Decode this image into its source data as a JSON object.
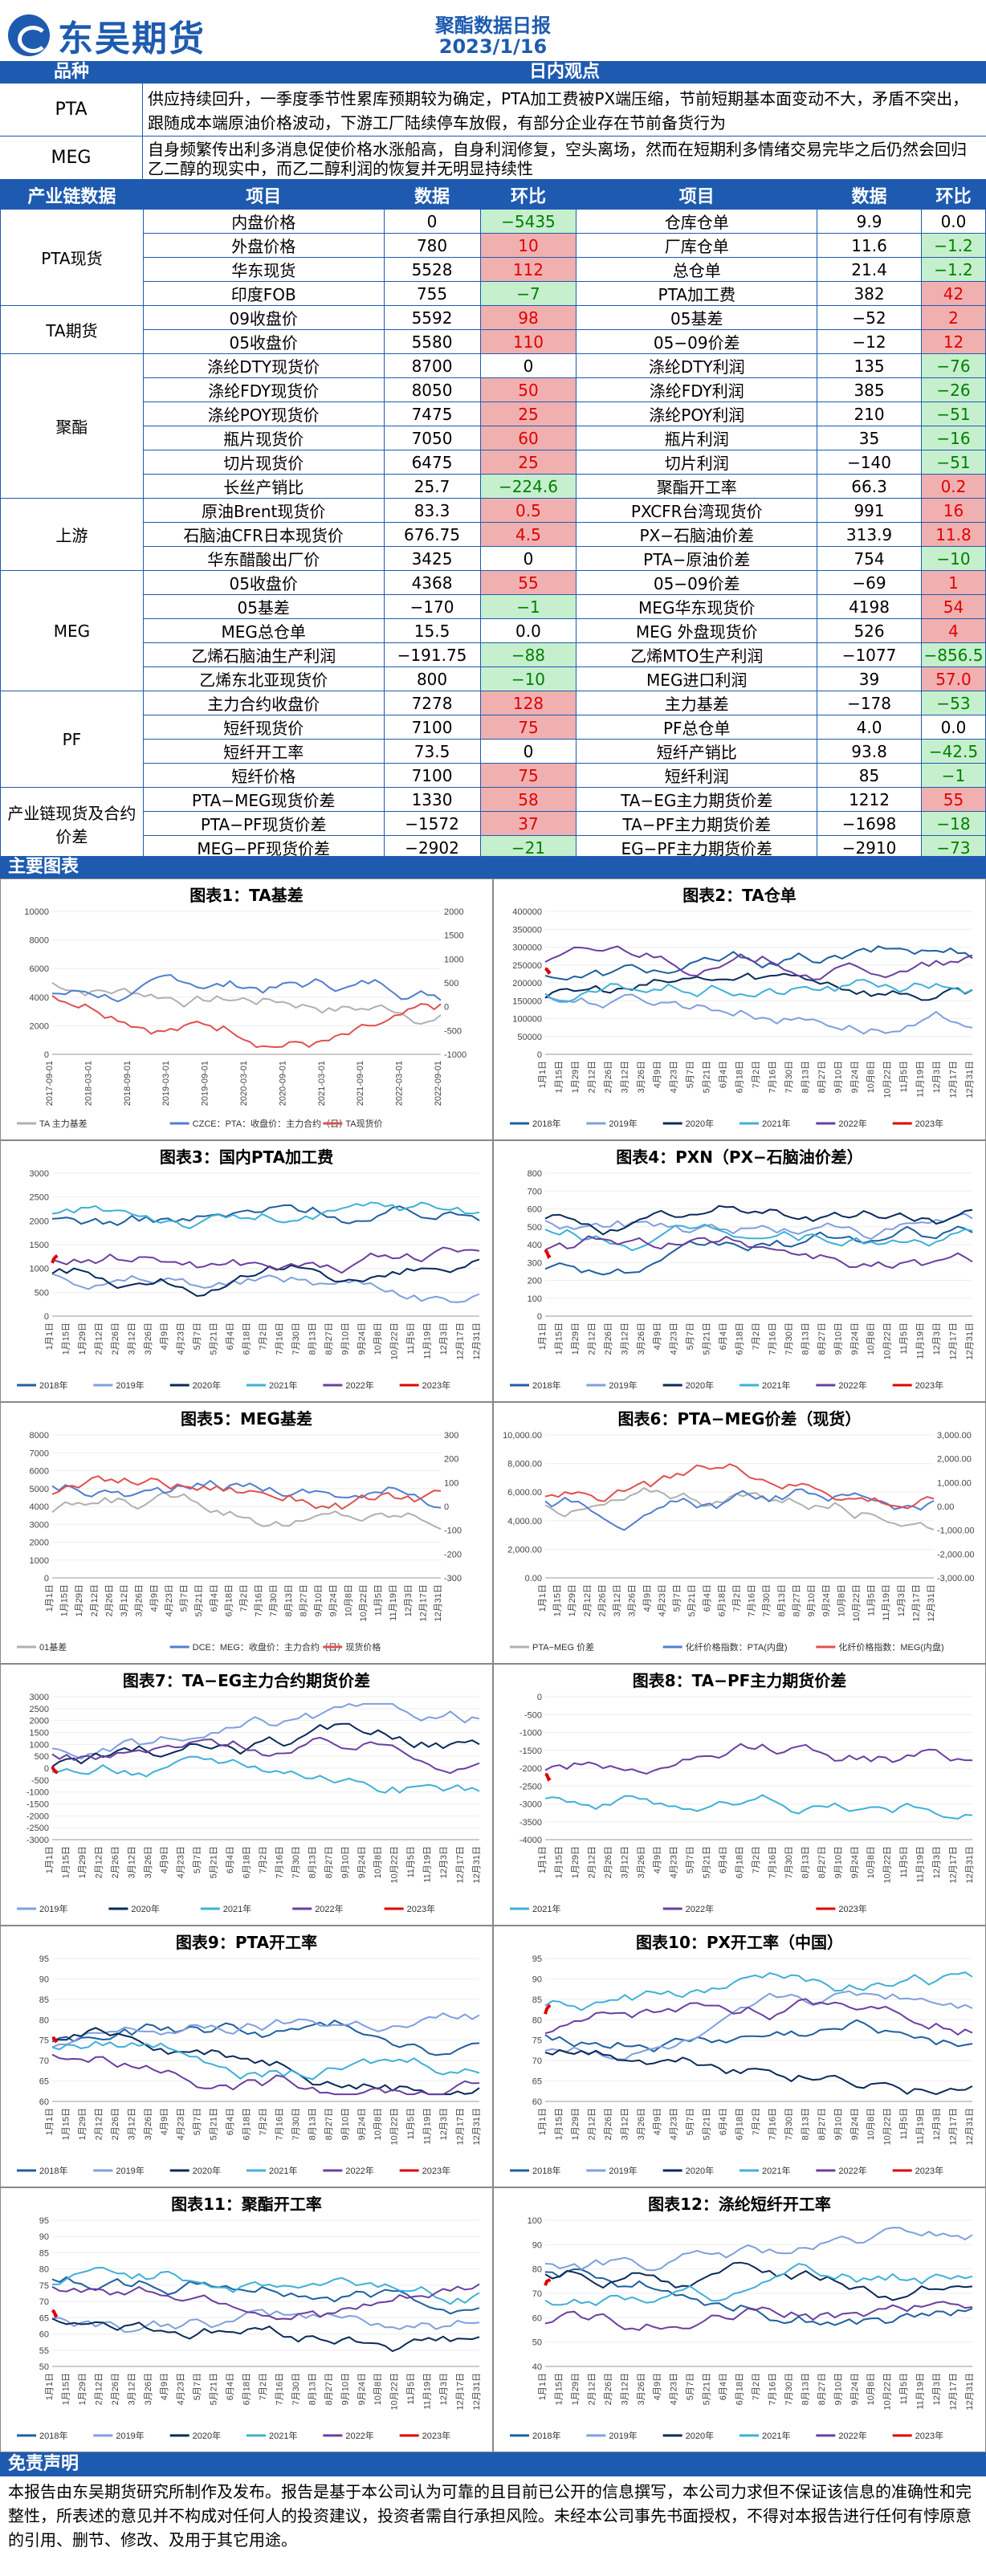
{
  "header": {
    "brand": "东吴期货",
    "title": "聚酯数据日报",
    "date": "2023/1/16"
  },
  "views": {
    "head_k": "品种",
    "head_v": "日内观点",
    "rows": [
      {
        "k": "PTA",
        "v": "供应持续回升，一季度季节性累库预期较为确定，PTA加工费被PX端压缩，节前短期基本面变动不大，矛盾不突出，跟随成本端原油价格波动，下游工厂陆续停车放假，有部分企业存在节前备货行为"
      },
      {
        "k": "MEG",
        "v": "自身频繁传出利多消息促使价格水涨船高，自身利润修复，空头离场，然而在短期利多情绪交易完毕之后仍然会回归乙二醇的现实中，而乙二醇利润的恢复并无明显持续性"
      }
    ]
  },
  "table": {
    "headers": [
      "产业链数据",
      "项目",
      "数据",
      "环比",
      "项目",
      "数据",
      "环比"
    ],
    "groups": [
      {
        "name": "PTA现货",
        "rows": [
          [
            "内盘价格",
            "0",
            "−5435",
            "仓库仓单",
            "9.9",
            "0.0"
          ],
          [
            "外盘价格",
            "780",
            "10",
            "厂库仓单",
            "11.6",
            "−1.2"
          ],
          [
            "华东现货",
            "5528",
            "112",
            "总仓单",
            "21.4",
            "−1.2"
          ],
          [
            "印度FOB",
            "755",
            "−7",
            "PTA加工费",
            "382",
            "42"
          ]
        ]
      },
      {
        "name": "TA期货",
        "rows": [
          [
            "09收盘价",
            "5592",
            "98",
            "05基差",
            "−52",
            "2"
          ],
          [
            "05收盘价",
            "5580",
            "110",
            "05−09价差",
            "−12",
            "12"
          ]
        ]
      },
      {
        "name": "聚酯",
        "rows": [
          [
            "涤纶DTY现货价",
            "8700",
            "0",
            "涤纶DTY利润",
            "135",
            "−76"
          ],
          [
            "涤纶FDY现货价",
            "8050",
            "50",
            "涤纶FDY利润",
            "385",
            "−26"
          ],
          [
            "涤纶POY现货价",
            "7475",
            "25",
            "涤纶POY利润",
            "210",
            "−51"
          ],
          [
            "瓶片现货价",
            "7050",
            "60",
            "瓶片利润",
            "35",
            "−16"
          ],
          [
            "切片现货价",
            "6475",
            "25",
            "切片利润",
            "−140",
            "−51"
          ],
          [
            "长丝产销比",
            "25.7",
            "−224.6",
            "聚酯开工率",
            "66.3",
            "0.2"
          ]
        ]
      },
      {
        "name": "上游",
        "rows": [
          [
            "原油Brent现货价",
            "83.3",
            "0.5",
            "PXCFR台湾现货价",
            "991",
            "16"
          ],
          [
            "石脑油CFR日本现货价",
            "676.75",
            "4.5",
            "PX−石脑油价差",
            "313.9",
            "11.8"
          ],
          [
            "华东醋酸出厂价",
            "3425",
            "0",
            "PTA−原油价差",
            "754",
            "−10"
          ]
        ]
      },
      {
        "name": "MEG",
        "rows": [
          [
            "05收盘价",
            "4368",
            "55",
            "05−09价差",
            "−69",
            "1"
          ],
          [
            "05基差",
            "−170",
            "−1",
            "MEG华东现货价",
            "4198",
            "54"
          ],
          [
            "MEG总仓单",
            "15.5",
            "0.0",
            "MEG 外盘现货价",
            "526",
            "4"
          ],
          [
            "乙烯石脑油生产利润",
            "−191.75",
            "−88",
            "乙烯MTO生产利润",
            "−1077",
            "−856.5"
          ],
          [
            "乙烯东北亚现货价",
            "800",
            "−10",
            "MEG进口利润",
            "39",
            "57.0"
          ]
        ]
      },
      {
        "name": "PF",
        "rows": [
          [
            "主力合约收盘价",
            "7278",
            "128",
            "主力基差",
            "−178",
            "−53"
          ],
          [
            "短纤现货价",
            "7100",
            "75",
            "PF总仓单",
            "4.0",
            "0.0"
          ],
          [
            "短纤开工率",
            "73.5",
            "0",
            "短纤产销比",
            "93.8",
            "−42.5"
          ],
          [
            "短纤价格",
            "7100",
            "75",
            "短纤利润",
            "85",
            "−1"
          ]
        ]
      },
      {
        "name": "产业链现货及合约价差",
        "rows": [
          [
            "PTA−MEG现货价差",
            "1330",
            "58",
            "TA−EG主力期货价差",
            "1212",
            "55"
          ],
          [
            "PTA−PF现货价差",
            "−1572",
            "37",
            "TA−PF主力期货价差",
            "−1698",
            "−18"
          ],
          [
            "MEG−PF现货价差",
            "−2902",
            "−21",
            "EG−PF主力期货价差",
            "−2910",
            "−73"
          ]
        ]
      }
    ]
  },
  "charts_header": "主要图表",
  "charts": [
    {
      "title": "图表1：TA基差",
      "legend": [
        "TA 主力基差",
        "CZCE：PTA：收盘价：主力合约（日）",
        "TA现货价"
      ],
      "xticks": [
        "2017-09-01",
        "2018-03-01",
        "2018-09-01",
        "2019-03-01",
        "2019-09-01",
        "2020-03-01",
        "2020-09-01",
        "2021-03-01",
        "2021-09-01",
        "2022-03-01",
        "2022-09-01"
      ],
      "yl": [
        "10000",
        "8000",
        "6000",
        "4000",
        "2000",
        "0"
      ],
      "yr": [
        "2000",
        "1500",
        "1000",
        "500",
        "0",
        "-500",
        "-1000"
      ]
    },
    {
      "title": "图表2：TA仓单",
      "legend": [
        "2018年",
        "2019年",
        "2020年",
        "2021年",
        "2022年",
        "2023年"
      ],
      "yl": [
        "400000",
        "350000",
        "300000",
        "250000",
        "200000",
        "150000",
        "100000",
        "50000",
        "0"
      ]
    },
    {
      "title": "图表3：国内PTA加工费",
      "legend": [
        "2018年",
        "2019年",
        "2020年",
        "2021年",
        "2022年",
        "2023年"
      ],
      "yl": [
        "3000",
        "2500",
        "2000",
        "1500",
        "1000",
        "500",
        "0"
      ]
    },
    {
      "title": "图表4：PXN（PX−石脑油价差）",
      "legend": [
        "2018年",
        "2019年",
        "2020年",
        "2021年",
        "2022年",
        "2023年"
      ],
      "yl": [
        "800",
        "700",
        "600",
        "500",
        "400",
        "300",
        "200",
        "100",
        "0"
      ]
    },
    {
      "title": "图表5：MEG基差",
      "legend": [
        "01基差",
        "DCE：MEG：收盘价：主力合约（日）",
        "现货价格"
      ],
      "yl": [
        "8000",
        "7000",
        "6000",
        "5000",
        "4000",
        "3000",
        "2000",
        "1000",
        "0"
      ],
      "yr": [
        "300",
        "200",
        "100",
        "0",
        "-100",
        "-200",
        "-300"
      ]
    },
    {
      "title": "图表6：PTA−MEG价差（现货）",
      "legend": [
        "PTA−MEG 价差",
        "化纤价格指数：PTA(内盘)",
        "化纤价格指数：MEG(内盘)"
      ],
      "yl": [
        "10,000.00",
        "8,000.00",
        "6,000.00",
        "4,000.00",
        "2,000.00",
        "0.00"
      ],
      "yr": [
        "3,000.00",
        "2,000.00",
        "1,000.00",
        "0.00",
        "-1,000.00",
        "-2,000.00",
        "-3,000.00"
      ]
    },
    {
      "title": "图表7：TA−EG主力合约期货价差",
      "legend": [
        "2019年",
        "2020年",
        "2021年",
        "2022年",
        "2023年"
      ],
      "yl": [
        "3000",
        "2500",
        "2000",
        "1500",
        "1000",
        "500",
        "0",
        "-500",
        "-1000",
        "-1500",
        "-2000",
        "-2500",
        "-3000"
      ]
    },
    {
      "title": "图表8：TA−PF主力期货价差",
      "legend": [
        "2021年",
        "2022年",
        "2023年"
      ],
      "yl": [
        "0",
        "-500",
        "-1000",
        "-1500",
        "-2000",
        "-2500",
        "-3000",
        "-3500",
        "-4000"
      ]
    },
    {
      "title": "图表9：PTA开工率",
      "legend": [
        "2018年",
        "2019年",
        "2020年",
        "2021年",
        "2022年",
        "2023年"
      ],
      "yl": [
        "95",
        "90",
        "85",
        "80",
        "75",
        "70",
        "65",
        "60"
      ]
    },
    {
      "title": "图表10：PX开工率（中国）",
      "legend": [
        "2018年",
        "2019年",
        "2020年",
        "2021年",
        "2022年",
        "2023年"
      ],
      "yl": [
        "95",
        "90",
        "85",
        "80",
        "75",
        "70",
        "65",
        "60"
      ]
    },
    {
      "title": "图表11：聚酯开工率",
      "legend": [
        "2018年",
        "2019年",
        "2020年",
        "2021年",
        "2022年",
        "2023年"
      ],
      "yl": [
        "95",
        "90",
        "85",
        "80",
        "75",
        "70",
        "65",
        "60",
        "55",
        "50"
      ]
    },
    {
      "title": "图表12：涤纶短纤开工率",
      "legend": [
        "2018年",
        "2019年",
        "2020年",
        "2021年",
        "2022年",
        "2023年"
      ],
      "yl": [
        "100",
        "90",
        "80",
        "70",
        "60",
        "50",
        "40"
      ]
    }
  ],
  "day_ticks": [
    "1月1日",
    "1月15日",
    "1月29日",
    "2月12日",
    "2月26日",
    "3月12日",
    "3月26日",
    "4月9日",
    "4月23日",
    "5月7日",
    "5月21日",
    "6月4日",
    "6月18日",
    "7月2日",
    "7月16日",
    "7月30日",
    "8月13日",
    "8月27日",
    "9月10日",
    "9月24日",
    "10月8日",
    "10月22日",
    "11月5日",
    "11月19日",
    "12月3日",
    "12月17日",
    "12月31日"
  ],
  "series_colors": {
    "2018年": "#1f5f9f",
    "2019年": "#7f9fdf",
    "2020年": "#0a2a5a",
    "2021年": "#3fb0d8",
    "2022年": "#6a3fa0",
    "2023年": "#e00000"
  },
  "disclaimer": {
    "title": "免责声明",
    "text": "本报告由东吴期货研究所制作及发布。报告是基于本公司认为可靠的且目前已公开的信息撰写，本公司力求但不保证该信息的准确性和完整性，所表述的意见并不构成对任何人的投资建议，投资者需自行承担风险。未经本公司事先书面授权，不得对本报告进行任何有悖原意的引用、删节、修改、及用于其它用途。"
  }
}
